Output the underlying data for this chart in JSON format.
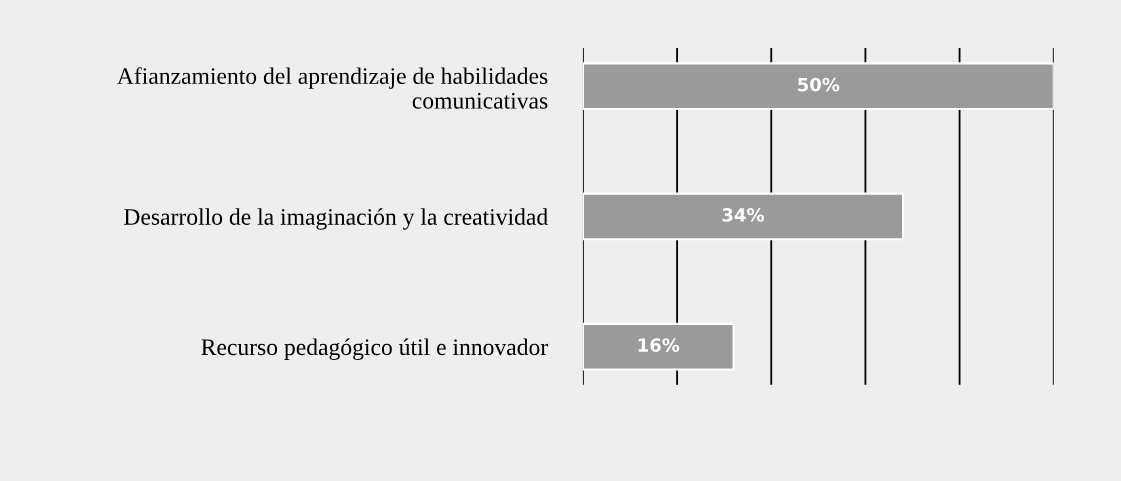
{
  "chart_data": {
    "type": "bar",
    "orientation": "horizontal",
    "categories": [
      "Afianzamiento del aprendizaje de habilidades\ncomunicativas",
      "Desarrollo de la imaginación y la creatividad",
      "Recurso pedagógico útil e innovador"
    ],
    "values": [
      50,
      34,
      16
    ],
    "value_labels": [
      "50%",
      "34%",
      "16%"
    ],
    "color": "#9a9a9a",
    "xlim": [
      0,
      50
    ],
    "xticks": [
      {
        "value": 0,
        "label": null
      },
      {
        "value": 10,
        "label": null
      },
      {
        "value": 20,
        "label": null
      },
      {
        "value": 30,
        "label": null
      },
      {
        "value": 40,
        "label": null
      },
      {
        "value": 50,
        "label": null
      }
    ],
    "grid": "x",
    "tick_labels": "y"
  }
}
